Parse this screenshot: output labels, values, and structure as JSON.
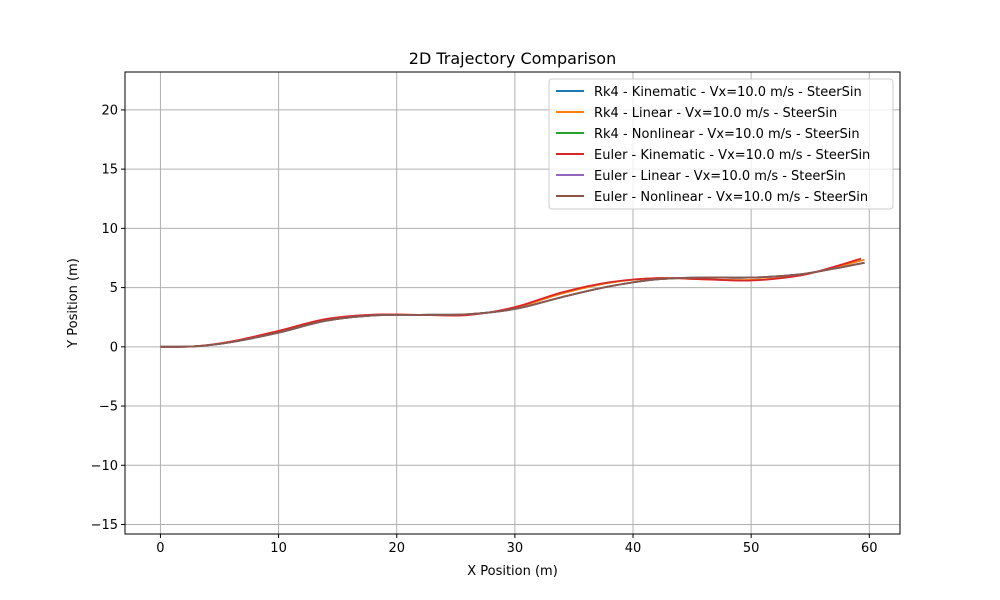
{
  "chart_data": {
    "type": "line",
    "title": "2D Trajectory Comparison",
    "xlabel": "X Position (m)",
    "ylabel": "Y Position (m)",
    "xlim": [
      -3,
      62.6
    ],
    "ylim": [
      -15.8,
      23.2
    ],
    "xticks": [
      0,
      10,
      20,
      30,
      40,
      50,
      60
    ],
    "yticks": [
      -15,
      -10,
      -5,
      0,
      5,
      10,
      15,
      20
    ],
    "xtick_labels": [
      "0",
      "10",
      "20",
      "30",
      "40",
      "50",
      "60"
    ],
    "ytick_labels": [
      "−15",
      "−10",
      "−5",
      "0",
      "5",
      "10",
      "15",
      "20"
    ],
    "grid": true,
    "legend_position": "top-right",
    "series": [
      {
        "name": "Rk4 - Kinematic - Vx=10.0 m/s - SteerSin",
        "color": "#1f77b4",
        "x": [
          0,
          3,
          6,
          10,
          14,
          18,
          22,
          26,
          30,
          34,
          38,
          42,
          46,
          50,
          54,
          57,
          59.6
        ],
        "y": [
          0,
          0.05,
          0.4,
          1.2,
          2.2,
          2.65,
          2.7,
          2.75,
          3.2,
          4.2,
          5.1,
          5.7,
          5.85,
          5.85,
          6.1,
          6.6,
          7.1
        ]
      },
      {
        "name": "Rk4 - Linear - Vx=10.0 m/s - SteerSin",
        "color": "#ff7f0e",
        "x": [
          0,
          3,
          6,
          10,
          14,
          18,
          22,
          26,
          30,
          34,
          38,
          42,
          46,
          50,
          54,
          57,
          59.6
        ],
        "y": [
          0,
          0.05,
          0.45,
          1.3,
          2.3,
          2.7,
          2.7,
          2.7,
          3.3,
          4.5,
          5.4,
          5.8,
          5.7,
          5.65,
          6.0,
          6.7,
          7.35
        ]
      },
      {
        "name": "Rk4 - Nonlinear - Vx=10.0 m/s - SteerSin",
        "color": "#2ca02c",
        "x": [
          0,
          3,
          6,
          10,
          14,
          18,
          22,
          26,
          30,
          34,
          38,
          42,
          46,
          50,
          54,
          57,
          59.6
        ],
        "y": [
          0,
          0.05,
          0.4,
          1.2,
          2.2,
          2.65,
          2.7,
          2.75,
          3.2,
          4.2,
          5.1,
          5.7,
          5.85,
          5.85,
          6.1,
          6.6,
          7.1
        ]
      },
      {
        "name": "Euler - Kinematic - Vx=10.0 m/s - SteerSin",
        "color": "#d62728",
        "x": [
          0,
          3,
          6,
          10,
          14,
          18,
          22,
          26,
          30,
          34,
          38,
          42,
          46,
          50,
          54,
          57,
          59.3
        ],
        "y": [
          0,
          0.05,
          0.45,
          1.35,
          2.35,
          2.72,
          2.7,
          2.68,
          3.35,
          4.6,
          5.45,
          5.8,
          5.7,
          5.6,
          6.0,
          6.75,
          7.45
        ]
      },
      {
        "name": "Euler - Linear - Vx=10.0 m/s - SteerSin",
        "color": "#9467bd",
        "x": [
          0,
          3,
          6,
          10,
          14,
          18,
          22,
          26,
          30,
          34,
          38,
          42,
          46,
          50,
          54,
          57,
          59.6
        ],
        "y": [
          0,
          0.05,
          0.4,
          1.2,
          2.2,
          2.65,
          2.7,
          2.75,
          3.2,
          4.2,
          5.1,
          5.7,
          5.85,
          5.85,
          6.1,
          6.6,
          7.1
        ]
      },
      {
        "name": "Euler - Nonlinear - Vx=10.0 m/s - SteerSin",
        "color": "#8c564b",
        "x": [
          0,
          3,
          6,
          10,
          14,
          18,
          22,
          26,
          30,
          34,
          38,
          42,
          46,
          50,
          54,
          57,
          59.6
        ],
        "y": [
          0,
          0.05,
          0.4,
          1.2,
          2.2,
          2.65,
          2.7,
          2.75,
          3.2,
          4.2,
          5.1,
          5.7,
          5.85,
          5.85,
          6.1,
          6.6,
          7.1
        ]
      }
    ]
  }
}
